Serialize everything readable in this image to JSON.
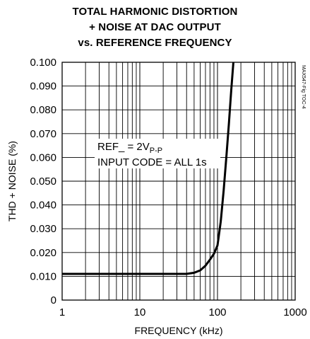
{
  "chart_data": {
    "type": "line",
    "title": [
      "TOTAL HARMONIC DISTORTION",
      "+ NOISE AT DAC OUTPUT",
      "vs. REFERENCE FREQUENCY"
    ],
    "xlabel": "FREQUENCY (kHz)",
    "ylabel": "THD + NOISE (%)",
    "x_scale": "log",
    "xlim": [
      1,
      1000
    ],
    "ylim": [
      0,
      0.1
    ],
    "x_tick_labels": [
      "1",
      "10",
      "100",
      "1000"
    ],
    "y_tick_labels": [
      "0",
      "0.010",
      "0.020",
      "0.030",
      "0.040",
      "0.050",
      "0.060",
      "0.070",
      "0.080",
      "0.090",
      "0.100"
    ],
    "grid": true,
    "annotation": {
      "line1_main": "REF_ = 2V",
      "line1_sub": "P-P",
      "line2": "INPUT CODE = ALL 1s"
    },
    "figure_id": "MAX547-Fig TOC-4",
    "series": [
      {
        "x": [
          1,
          10,
          20,
          40,
          50,
          60,
          70,
          80,
          90,
          100,
          110,
          120,
          130,
          140,
          150,
          160
        ],
        "y": [
          0.011,
          0.011,
          0.011,
          0.011,
          0.0115,
          0.0125,
          0.0145,
          0.017,
          0.0195,
          0.023,
          0.033,
          0.046,
          0.06,
          0.074,
          0.088,
          0.1
        ]
      }
    ]
  }
}
